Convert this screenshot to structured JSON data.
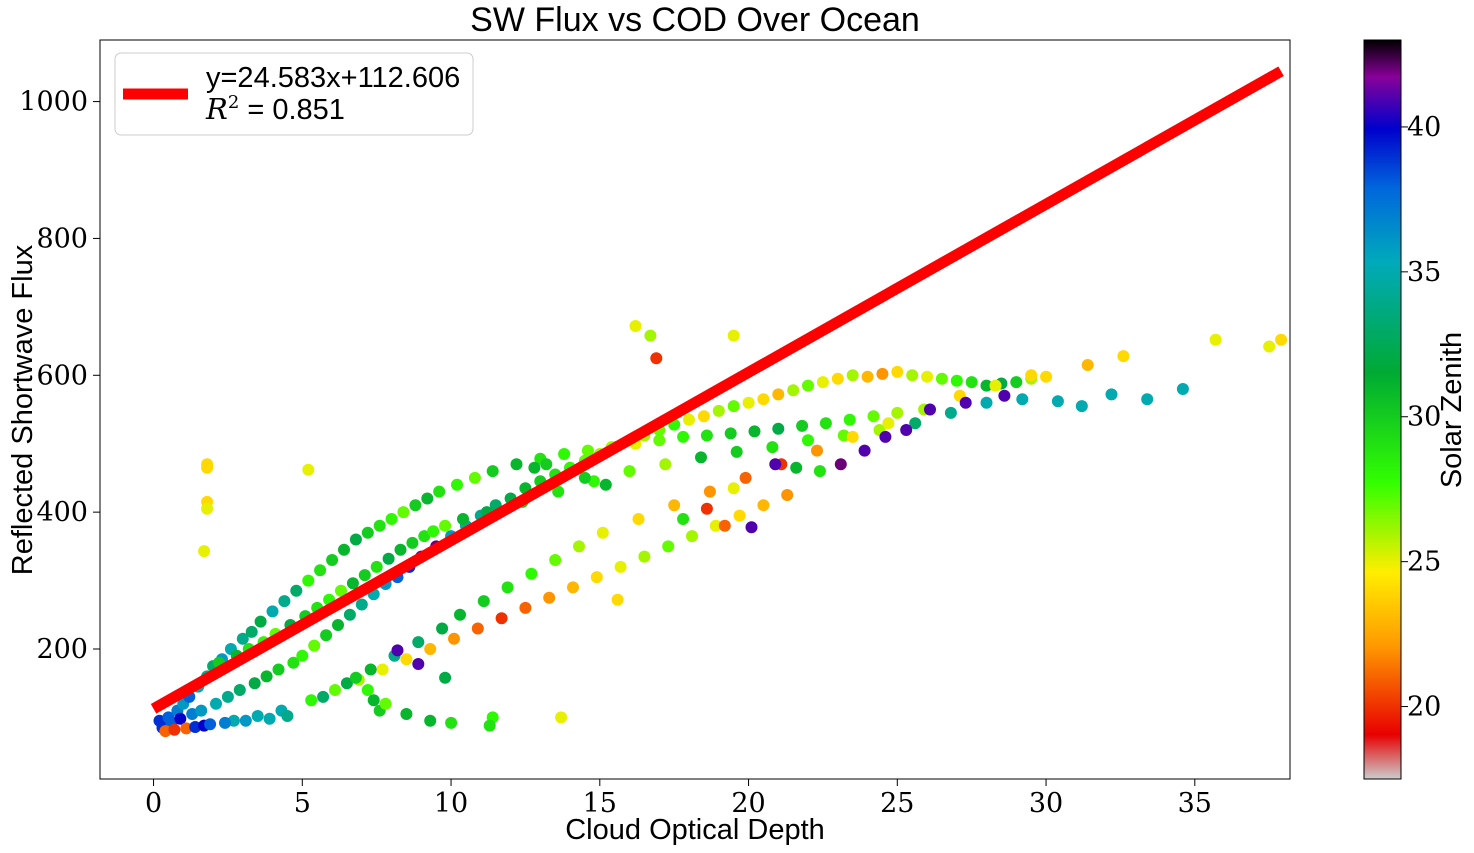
{
  "chart_data": {
    "type": "scatter",
    "title": "SW Flux vs COD Over Ocean",
    "xlabel": "Cloud Optical Depth",
    "ylabel": "Reflected Shortwave Flux",
    "xlim": [
      -1.8,
      38.2
    ],
    "ylim": [
      10,
      1090
    ],
    "x_ticks": [
      0,
      5,
      10,
      15,
      20,
      25,
      30,
      35
    ],
    "y_ticks": [
      200,
      400,
      600,
      800,
      1000
    ],
    "grid": false,
    "legend_position": "top-left",
    "fit_line": {
      "label_line1": "y=24.583x+112.606",
      "label_line2_prefix": "R",
      "label_line2_sup": "2",
      "label_line2_suffix": " = 0.851",
      "slope": 24.583,
      "intercept": 112.606,
      "x_range": [
        0,
        37.9
      ],
      "color": "#ff0000"
    },
    "colorbar": {
      "label": "Solar Zenith",
      "range": [
        17.5,
        43.0
      ],
      "ticks": [
        20,
        25,
        30,
        35,
        40
      ],
      "colormap": "nipy_spectral"
    },
    "series": [
      {
        "x": [
          0.2,
          0.5,
          0.8,
          1.0,
          1.2,
          1.5,
          1.8,
          2.0,
          2.3,
          2.6,
          3.0,
          3.3,
          3.6,
          4.0,
          4.4,
          4.8,
          0.3,
          0.6,
          0.9,
          1.3,
          1.6,
          2.1,
          2.5,
          2.9,
          3.4,
          3.8,
          4.2,
          4.7,
          5.0,
          5.4,
          5.8,
          6.2,
          6.6,
          7.0,
          7.4,
          7.8,
          8.2,
          8.6,
          9.0,
          9.5,
          10.0,
          10.5,
          11.0,
          11.5,
          12.0,
          12.5,
          13.0,
          13.5,
          14.0,
          14.5,
          15.0,
          15.5,
          16.0,
          16.5,
          17.0,
          17.5,
          18.0,
          18.5,
          19.0,
          19.5,
          20.0,
          20.5,
          21.0,
          21.5,
          22.0,
          22.5,
          23.0,
          23.5,
          24.0,
          24.5,
          25.0,
          25.5,
          26.0,
          26.5,
          27.0,
          27.5,
          28.0,
          28.5,
          29.0,
          29.5,
          30.0,
          5.2,
          5.6,
          6.0,
          6.4,
          6.8,
          7.2,
          7.6,
          8.0,
          8.4,
          8.8,
          9.2,
          9.6,
          10.2,
          10.8,
          11.4,
          12.2,
          13.0,
          13.8,
          14.6,
          15.4,
          16.2,
          17.0,
          17.8,
          18.6,
          19.4,
          20.2,
          21.0,
          21.8,
          22.6,
          23.4,
          24.2,
          25.0,
          2.2,
          2.8,
          3.2,
          3.7,
          4.1,
          4.6,
          5.1,
          5.5,
          5.9,
          6.3,
          6.7,
          7.1,
          7.5,
          7.9,
          8.3,
          8.7,
          9.1,
          9.4,
          9.8,
          10.4,
          11.2,
          12.4,
          13.6,
          14.8,
          16.0,
          17.2,
          18.4,
          19.6,
          20.8,
          22.0,
          23.2,
          24.4,
          25.6,
          26.8,
          28.0,
          29.2,
          30.4,
          31.2,
          32.2,
          33.4,
          34.6,
          2.7,
          3.5,
          4.3,
          5.3,
          6.1,
          6.9,
          7.7,
          8.5,
          9.3,
          10.1,
          10.9,
          11.7,
          12.5,
          13.3,
          14.1,
          14.9,
          15.7,
          16.5,
          17.3,
          18.1,
          18.9,
          19.7,
          20.5,
          21.3,
          0.4,
          0.7,
          1.1,
          1.4,
          1.7,
          1.9,
          2.4,
          3.1,
          3.9,
          4.5,
          5.7,
          6.5,
          7.3,
          8.1,
          8.9,
          9.7,
          10.3,
          11.1,
          11.9,
          12.7,
          13.5,
          14.3,
          15.1,
          16.3,
          17.5,
          18.7,
          19.9,
          21.1,
          22.3,
          23.5,
          24.7,
          25.9,
          27.1,
          28.3,
          29.5,
          31.4,
          32.6,
          35.7,
          37.5,
          37.9,
          1.8,
          1.8,
          1.8,
          1.8,
          1.7,
          5.2,
          16.2,
          16.7,
          16.9,
          19.5,
          19.5,
          15.6,
          13.7,
          11.4,
          11.3,
          10.0,
          9.3,
          8.5,
          7.6,
          7.4,
          14.5,
          15.2,
          9.8,
          8.9,
          8.2,
          7.8,
          7.2,
          6.8,
          12.8,
          13.2,
          17.8,
          18.6,
          19.2,
          20.1,
          20.9,
          21.6,
          22.4,
          23.1,
          23.9,
          24.6,
          25.3,
          26.1,
          27.3,
          28.6
        ],
        "y": [
          95,
          100,
          110,
          120,
          130,
          145,
          160,
          175,
          185,
          200,
          215,
          225,
          240,
          255,
          270,
          285,
          85,
          92,
          98,
          105,
          110,
          120,
          130,
          140,
          150,
          160,
          170,
          180,
          190,
          205,
          220,
          235,
          250,
          265,
          280,
          295,
          305,
          320,
          335,
          350,
          365,
          380,
          395,
          410,
          420,
          435,
          445,
          455,
          465,
          475,
          485,
          495,
          505,
          512,
          520,
          528,
          535,
          540,
          548,
          555,
          560,
          565,
          572,
          578,
          585,
          590,
          595,
          600,
          598,
          602,
          605,
          600,
          598,
          595,
          592,
          590,
          585,
          588,
          590,
          595,
          598,
          300,
          315,
          330,
          345,
          360,
          370,
          380,
          390,
          400,
          410,
          420,
          430,
          440,
          450,
          460,
          470,
          478,
          485,
          490,
          495,
          500,
          505,
          510,
          512,
          515,
          518,
          522,
          526,
          530,
          535,
          540,
          545,
          180,
          190,
          200,
          210,
          222,
          235,
          248,
          260,
          272,
          285,
          296,
          308,
          320,
          332,
          345,
          355,
          365,
          372,
          380,
          390,
          400,
          415,
          430,
          445,
          460,
          470,
          480,
          488,
          495,
          505,
          512,
          520,
          530,
          545,
          560,
          565,
          562,
          555,
          572,
          565,
          580,
          95,
          102,
          110,
          125,
          140,
          155,
          170,
          185,
          200,
          215,
          230,
          245,
          260,
          275,
          290,
          305,
          320,
          335,
          350,
          365,
          380,
          395,
          410,
          425,
          80,
          82,
          84,
          86,
          88,
          90,
          92,
          95,
          98,
          102,
          130,
          150,
          170,
          190,
          210,
          230,
          250,
          270,
          290,
          310,
          330,
          350,
          370,
          390,
          410,
          430,
          450,
          470,
          490,
          510,
          530,
          550,
          570,
          585,
          600,
          615,
          628,
          652,
          642,
          652,
          470,
          465,
          415,
          405,
          343,
          462,
          672,
          658,
          625,
          658,
          435,
          272,
          100,
          100,
          88,
          92,
          95,
          105,
          110,
          125,
          450,
          440,
          158,
          178,
          198,
          120,
          140,
          158,
          465,
          470,
          390,
          405,
          380,
          378,
          470,
          465,
          460,
          470,
          490,
          510,
          520,
          550,
          560,
          570
        ],
        "c": [
          39,
          38,
          37,
          36,
          38,
          35,
          34,
          33,
          36,
          35,
          34,
          33,
          32,
          35,
          34,
          33,
          39,
          38,
          40,
          37,
          36,
          35,
          34,
          33,
          32,
          31,
          30,
          29,
          28,
          27,
          30,
          31,
          33,
          34,
          35,
          36,
          38,
          39,
          41,
          42,
          36,
          35,
          34,
          33,
          32,
          31,
          30,
          29,
          28,
          27,
          26,
          25,
          24,
          26,
          27,
          28,
          25,
          24,
          26,
          27,
          25,
          24,
          23,
          26,
          27,
          25,
          24,
          26,
          23,
          22,
          24,
          26,
          25,
          27,
          28,
          29,
          31,
          32,
          30,
          26,
          24,
          28,
          29,
          30,
          31,
          32,
          30,
          29,
          28,
          27,
          30,
          31,
          29,
          28,
          27,
          30,
          31,
          29,
          28,
          27,
          26,
          25,
          27,
          28,
          29,
          30,
          31,
          32,
          30,
          29,
          28,
          27,
          26,
          30,
          31,
          29,
          28,
          27,
          32,
          30,
          29,
          28,
          27,
          31,
          30,
          29,
          32,
          31,
          30,
          29,
          28,
          27,
          31,
          32,
          30,
          29,
          28,
          27,
          26,
          31,
          30,
          29,
          28,
          27,
          26,
          33,
          34,
          35,
          35,
          35,
          35,
          35,
          35,
          35,
          35,
          35,
          35,
          28,
          27,
          26,
          25,
          24,
          23,
          22,
          21,
          20,
          21,
          22,
          23,
          24,
          25,
          26,
          27,
          26,
          25,
          24,
          23,
          22,
          21,
          20,
          21,
          39,
          40,
          38,
          37,
          36,
          35,
          34,
          33,
          32,
          31,
          34,
          33,
          32,
          31,
          30,
          29,
          28,
          27,
          26,
          25,
          24,
          23,
          22,
          21,
          20,
          22,
          24,
          25,
          26,
          24,
          25,
          24,
          23,
          24,
          25,
          25,
          24,
          24,
          24,
          24,
          25,
          25,
          25,
          25,
          26,
          20,
          25,
          25,
          24,
          25,
          28,
          29,
          29,
          31,
          31,
          30,
          31,
          30,
          31,
          32,
          41,
          41,
          27,
          28,
          30,
          31,
          30,
          29,
          20,
          21,
          41,
          41,
          31,
          29,
          42,
          41,
          41,
          41,
          41,
          41,
          41,
          41,
          41,
          41
        ]
      }
    ]
  }
}
